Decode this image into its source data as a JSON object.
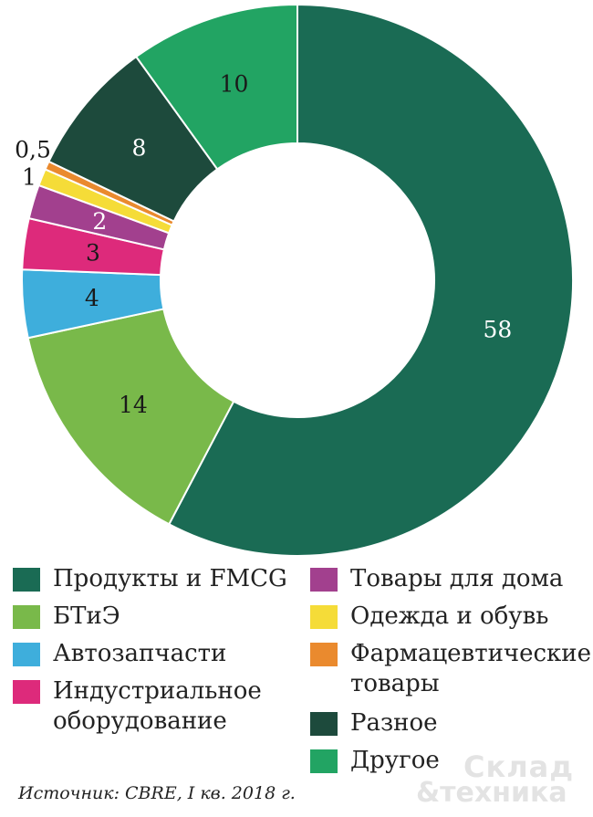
{
  "chart_data": {
    "type": "pie",
    "variant": "donut",
    "slices": [
      {
        "label": "Продукты и FMCG",
        "value": 58,
        "value_label": "58",
        "color": "#1a6b54"
      },
      {
        "label": "БТиЭ",
        "value": 14,
        "value_label": "14",
        "color": "#79b94a"
      },
      {
        "label": "Автозапчасти",
        "value": 4,
        "value_label": "4",
        "color": "#3eaedc"
      },
      {
        "label": "Индустриальное оборудование",
        "value": 3,
        "value_label": "3",
        "color": "#dd2a7b"
      },
      {
        "label": "Товары для дома",
        "value": 2,
        "value_label": "2",
        "color": "#a2408e"
      },
      {
        "label": "Одежда и обувь",
        "value": 1,
        "value_label": "1",
        "color": "#f5dc38"
      },
      {
        "label": "Фармацевтические товары",
        "value": 0.5,
        "value_label": "0,5",
        "color": "#ea8a2e"
      },
      {
        "label": "Разное",
        "value": 8,
        "value_label": "8",
        "color": "#1d4a3c"
      },
      {
        "label": "Другое",
        "value": 10,
        "value_label": "10",
        "color": "#22a463"
      }
    ],
    "legend_placement": "bottom"
  },
  "legend": {
    "left": [
      {
        "lines": [
          "Продукты и FMCG"
        ],
        "color": "#1a6b54"
      },
      {
        "lines": [
          "БТиЭ"
        ],
        "color": "#79b94a"
      },
      {
        "lines": [
          "Автозапчасти"
        ],
        "color": "#3eaedc"
      },
      {
        "lines": [
          "Индустриальное",
          "оборудование"
        ],
        "color": "#dd2a7b"
      }
    ],
    "right": [
      {
        "lines": [
          "Товары для дома"
        ],
        "color": "#a2408e"
      },
      {
        "lines": [
          "Одежда и обувь"
        ],
        "color": "#f5dc38"
      },
      {
        "lines": [
          "Фармацевтические",
          "товары"
        ],
        "color": "#ea8a2e"
      },
      {
        "lines": [
          "Разное"
        ],
        "color": "#1d4a3c"
      },
      {
        "lines": [
          "Другое"
        ],
        "color": "#22a463"
      }
    ]
  },
  "source": "Источник: CBRE, I кв. 2018 г.",
  "logo": {
    "line1": "Склад",
    "line2": "&техника"
  }
}
